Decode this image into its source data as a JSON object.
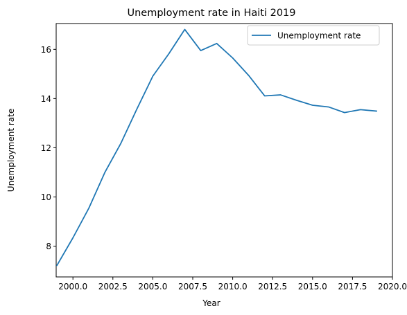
{
  "chart_data": {
    "type": "line",
    "title": "Unemployment rate in Haiti 2019",
    "xlabel": "Year",
    "ylabel": "Unemployment rate",
    "xlim": [
      1998.95,
      2020.0
    ],
    "ylim": [
      6.75,
      17.05
    ],
    "xticks": [
      2000.0,
      2002.5,
      2005.0,
      2007.5,
      2010.0,
      2012.5,
      2015.0,
      2017.5,
      2020.0
    ],
    "xtick_labels": [
      "2000.0",
      "2002.5",
      "2005.0",
      "2007.5",
      "2010.0",
      "2012.5",
      "2015.0",
      "2017.5",
      "2020.0"
    ],
    "yticks": [
      8,
      10,
      12,
      14,
      16
    ],
    "ytick_labels": [
      "8",
      "10",
      "12",
      "14",
      "16"
    ],
    "grid": false,
    "legend": "upper-right",
    "series": [
      {
        "name": "Unemployment rate",
        "color": "#1f77b4",
        "x": [
          1999,
          2000,
          2001,
          2002,
          2003,
          2004,
          2005,
          2006,
          2007,
          2008,
          2009,
          2010,
          2011,
          2012,
          2013,
          2014,
          2015,
          2016,
          2017,
          2018,
          2019
        ],
        "y": [
          7.22,
          8.34,
          9.55,
          11.0,
          12.18,
          13.57,
          14.91,
          15.82,
          16.81,
          15.95,
          16.24,
          15.65,
          14.94,
          14.11,
          14.15,
          13.93,
          13.73,
          13.66,
          13.43,
          13.55,
          13.49
        ]
      }
    ]
  }
}
